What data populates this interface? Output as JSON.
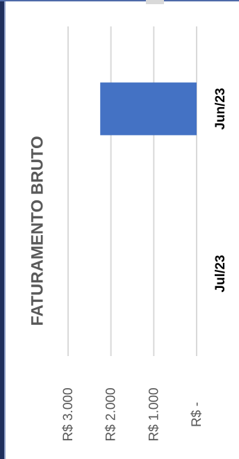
{
  "chart_data": {
    "type": "bar",
    "orientation": "horizontal",
    "title": "FATURAMENTO BRUTO",
    "categories": [
      "Jun/23",
      "Jul/23"
    ],
    "series": [
      {
        "values": [
          2250,
          0
        ]
      }
    ],
    "tick_labels": [
      "R$ -",
      "R$ 1.000",
      "R$ 2.000",
      "R$ 3.000"
    ],
    "tick_values": [
      0,
      1000,
      2000,
      3000
    ],
    "xlim": [
      0,
      3000
    ],
    "grid": true,
    "legend": "none",
    "bar_color": "#4472c4",
    "grid_color": "#d9d9d9",
    "text_color": "#595959"
  }
}
